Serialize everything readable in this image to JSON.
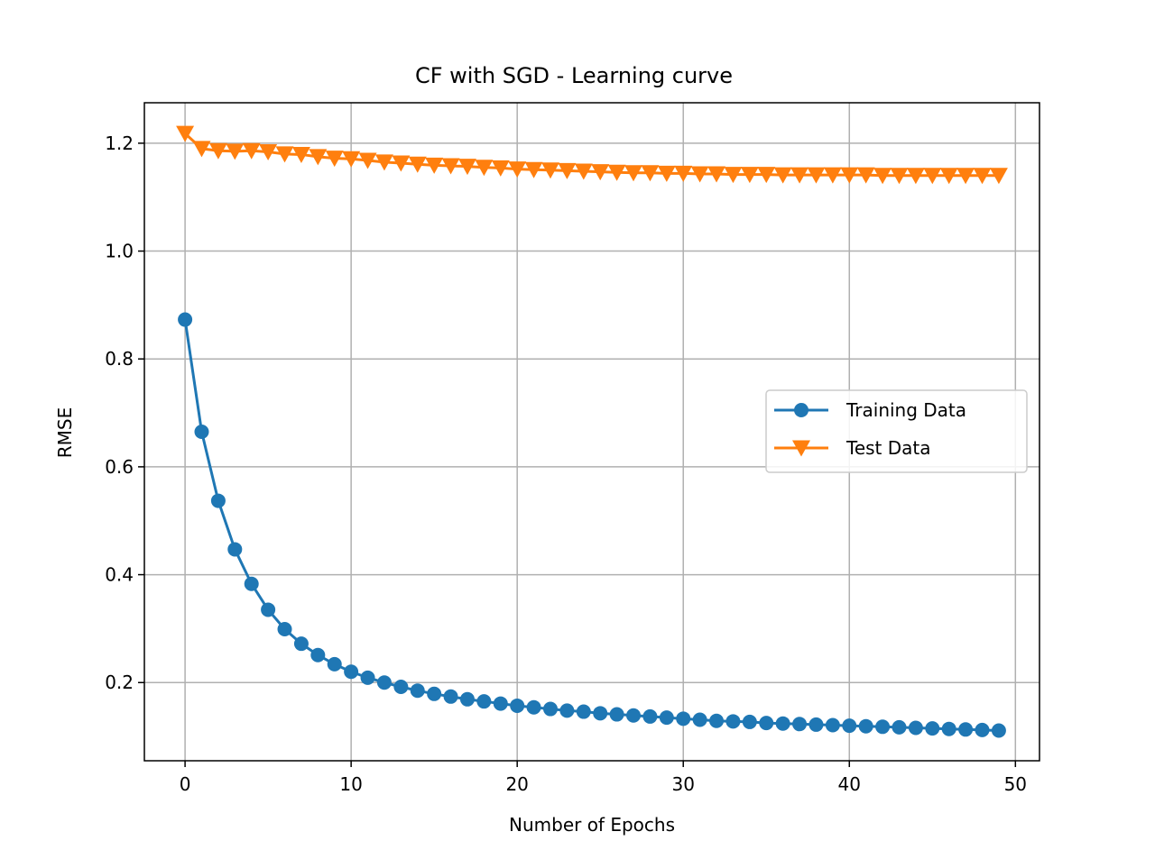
{
  "chart_data": {
    "type": "line",
    "title": "CF with SGD - Learning curve",
    "xlabel": "Number of Epochs",
    "ylabel": "RMSE",
    "xlim": [
      -2.45,
      51.45
    ],
    "ylim": [
      0.055,
      1.275
    ],
    "xticks": [
      0,
      10,
      20,
      30,
      40,
      50
    ],
    "xtick_labels": [
      "0",
      "10",
      "20",
      "30",
      "40",
      "50"
    ],
    "yticks": [
      0.2,
      0.4,
      0.6,
      0.8,
      1.0,
      1.2
    ],
    "ytick_labels": [
      "0.2",
      "0.4",
      "0.6",
      "0.8",
      "1.0",
      "1.2"
    ],
    "grid": true,
    "legend_position": "center-right",
    "x": [
      0,
      1,
      2,
      3,
      4,
      5,
      6,
      7,
      8,
      9,
      10,
      11,
      12,
      13,
      14,
      15,
      16,
      17,
      18,
      19,
      20,
      21,
      22,
      23,
      24,
      25,
      26,
      27,
      28,
      29,
      30,
      31,
      32,
      33,
      34,
      35,
      36,
      37,
      38,
      39,
      40,
      41,
      42,
      43,
      44,
      45,
      46,
      47,
      48,
      49
    ],
    "series": [
      {
        "name": "Training Data",
        "color": "#1f77b4",
        "marker": "circle",
        "values": [
          0.873,
          0.665,
          0.537,
          0.447,
          0.383,
          0.335,
          0.299,
          0.272,
          0.251,
          0.234,
          0.22,
          0.209,
          0.2,
          0.192,
          0.185,
          0.179,
          0.174,
          0.169,
          0.165,
          0.161,
          0.157,
          0.154,
          0.151,
          0.148,
          0.146,
          0.143,
          0.141,
          0.139,
          0.137,
          0.135,
          0.133,
          0.131,
          0.129,
          0.128,
          0.127,
          0.125,
          0.124,
          0.123,
          0.122,
          0.121,
          0.12,
          0.119,
          0.118,
          0.117,
          0.116,
          0.115,
          0.114,
          0.113,
          0.112,
          0.111
        ]
      },
      {
        "name": "Test Data",
        "color": "#ff7f0e",
        "marker": "triangle-down",
        "values": [
          1.218,
          1.19,
          1.186,
          1.185,
          1.186,
          1.184,
          1.18,
          1.179,
          1.175,
          1.172,
          1.171,
          1.168,
          1.165,
          1.163,
          1.161,
          1.159,
          1.158,
          1.157,
          1.155,
          1.154,
          1.152,
          1.151,
          1.15,
          1.149,
          1.148,
          1.147,
          1.146,
          1.145,
          1.145,
          1.144,
          1.144,
          1.143,
          1.143,
          1.142,
          1.142,
          1.142,
          1.141,
          1.141,
          1.141,
          1.141,
          1.141,
          1.141,
          1.14,
          1.14,
          1.14,
          1.14,
          1.14,
          1.14,
          1.14,
          1.14
        ]
      }
    ]
  }
}
